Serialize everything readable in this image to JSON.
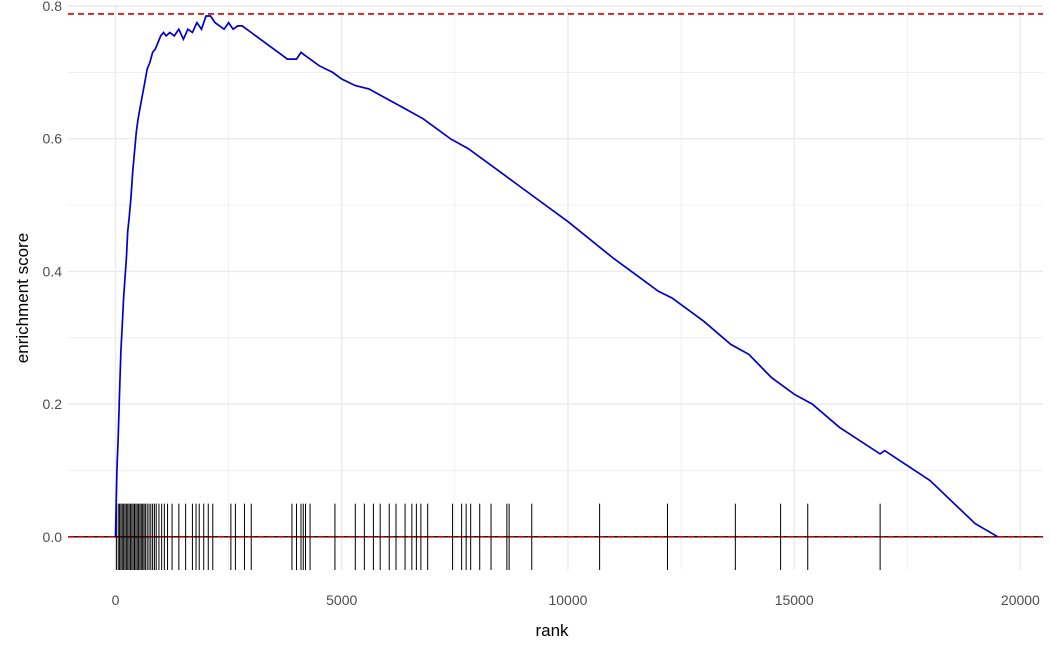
{
  "chart_data": {
    "type": "line",
    "title": "",
    "xlabel": "rank",
    "ylabel": "enrichment score",
    "xlim": [
      -1050,
      20500
    ],
    "ylim": [
      -0.05,
      0.8
    ],
    "x_ticks": [
      0,
      5000,
      10000,
      15000,
      20000
    ],
    "x_tick_labels": [
      "0",
      "5000",
      "10000",
      "15000",
      "20000"
    ],
    "y_ticks": [
      0.0,
      0.2,
      0.4,
      0.6,
      0.8
    ],
    "y_tick_labels": [
      "0.0",
      "0.2",
      "0.4",
      "0.6",
      "0.8"
    ],
    "grid": true,
    "colors": {
      "curve": "#0000cd",
      "reference_line": "#cc0000",
      "hits": "#000000",
      "grid": "#ebebeb"
    },
    "reference_lines": [
      {
        "y": 0.788,
        "style": "dashed"
      },
      {
        "y": 0.0,
        "style": "dashed"
      }
    ],
    "series": [
      {
        "x": [
          0,
          30,
          60,
          90,
          120,
          150,
          180,
          210,
          240,
          270,
          300,
          340,
          380,
          420,
          460,
          500,
          540,
          580,
          620,
          660,
          700,
          760,
          820,
          880,
          940,
          1000,
          1060,
          1120,
          1200,
          1300,
          1400,
          1500,
          1600,
          1700,
          1800,
          1900,
          2000,
          2100,
          2200,
          2300,
          2400,
          2500,
          2600,
          2700,
          2800,
          2900,
          3000,
          3200,
          3400,
          3600,
          3800,
          4000,
          4100,
          4200,
          4300,
          4500,
          4800,
          5000,
          5300,
          5600,
          6000,
          6400,
          6800,
          7000,
          7400,
          7800,
          8200,
          8600,
          9000,
          10000,
          11000,
          12000,
          12300,
          13000,
          13600,
          14000,
          14500,
          15000,
          15400,
          16000,
          16900,
          17000,
          18000,
          19000,
          19500
        ],
        "y": [
          0.0,
          0.1,
          0.15,
          0.22,
          0.28,
          0.32,
          0.36,
          0.39,
          0.42,
          0.46,
          0.48,
          0.51,
          0.55,
          0.58,
          0.61,
          0.63,
          0.645,
          0.66,
          0.675,
          0.69,
          0.705,
          0.715,
          0.73,
          0.735,
          0.745,
          0.755,
          0.76,
          0.755,
          0.76,
          0.755,
          0.765,
          0.75,
          0.765,
          0.76,
          0.775,
          0.765,
          0.785,
          0.785,
          0.775,
          0.77,
          0.765,
          0.775,
          0.765,
          0.77,
          0.77,
          0.765,
          0.76,
          0.75,
          0.74,
          0.73,
          0.72,
          0.72,
          0.73,
          0.725,
          0.72,
          0.71,
          0.7,
          0.69,
          0.68,
          0.675,
          0.66,
          0.645,
          0.63,
          0.62,
          0.6,
          0.585,
          0.565,
          0.545,
          0.525,
          0.475,
          0.42,
          0.37,
          0.36,
          0.325,
          0.29,
          0.275,
          0.24,
          0.215,
          0.2,
          0.165,
          0.125,
          0.13,
          0.085,
          0.02,
          0.0
        ]
      }
    ],
    "hits": [
      20,
      60,
      90,
      120,
      150,
      180,
      210,
      240,
      270,
      300,
      330,
      360,
      390,
      420,
      450,
      480,
      510,
      540,
      570,
      600,
      630,
      660,
      700,
      740,
      780,
      820,
      860,
      900,
      960,
      1020,
      1080,
      1150,
      1250,
      1400,
      1550,
      1700,
      1780,
      1850,
      1950,
      2050,
      2150,
      2550,
      2650,
      2850,
      3000,
      3900,
      4000,
      4100,
      4150,
      4200,
      4300,
      4850,
      5300,
      5500,
      5700,
      5850,
      6050,
      6200,
      6400,
      6550,
      6650,
      6750,
      6900,
      7450,
      7650,
      7750,
      7850,
      8050,
      8300,
      8650,
      8700,
      9200,
      10700,
      12200,
      13700,
      14700,
      15300,
      16900
    ]
  }
}
